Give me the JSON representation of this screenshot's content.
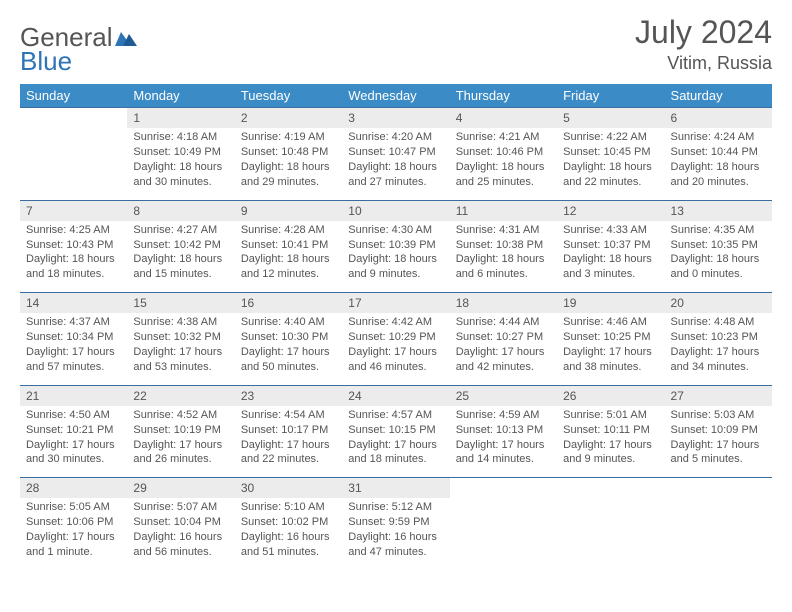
{
  "header": {
    "logo_text1": "General",
    "logo_text2": "Blue",
    "month": "July 2024",
    "location": "Vitim, Russia"
  },
  "colors": {
    "header_bg": "#3b8bc6",
    "header_text": "#ffffff",
    "rule": "#3b6ea0",
    "daynum_bg": "#ececec",
    "text": "#555555",
    "logo_blue": "#2f74b5"
  },
  "weekdays": [
    "Sunday",
    "Monday",
    "Tuesday",
    "Wednesday",
    "Thursday",
    "Friday",
    "Saturday"
  ],
  "weeks": [
    [
      null,
      {
        "n": "1",
        "sr": "Sunrise: 4:18 AM",
        "ss": "Sunset: 10:49 PM",
        "d1": "Daylight: 18 hours",
        "d2": "and 30 minutes."
      },
      {
        "n": "2",
        "sr": "Sunrise: 4:19 AM",
        "ss": "Sunset: 10:48 PM",
        "d1": "Daylight: 18 hours",
        "d2": "and 29 minutes."
      },
      {
        "n": "3",
        "sr": "Sunrise: 4:20 AM",
        "ss": "Sunset: 10:47 PM",
        "d1": "Daylight: 18 hours",
        "d2": "and 27 minutes."
      },
      {
        "n": "4",
        "sr": "Sunrise: 4:21 AM",
        "ss": "Sunset: 10:46 PM",
        "d1": "Daylight: 18 hours",
        "d2": "and 25 minutes."
      },
      {
        "n": "5",
        "sr": "Sunrise: 4:22 AM",
        "ss": "Sunset: 10:45 PM",
        "d1": "Daylight: 18 hours",
        "d2": "and 22 minutes."
      },
      {
        "n": "6",
        "sr": "Sunrise: 4:24 AM",
        "ss": "Sunset: 10:44 PM",
        "d1": "Daylight: 18 hours",
        "d2": "and 20 minutes."
      }
    ],
    [
      {
        "n": "7",
        "sr": "Sunrise: 4:25 AM",
        "ss": "Sunset: 10:43 PM",
        "d1": "Daylight: 18 hours",
        "d2": "and 18 minutes."
      },
      {
        "n": "8",
        "sr": "Sunrise: 4:27 AM",
        "ss": "Sunset: 10:42 PM",
        "d1": "Daylight: 18 hours",
        "d2": "and 15 minutes."
      },
      {
        "n": "9",
        "sr": "Sunrise: 4:28 AM",
        "ss": "Sunset: 10:41 PM",
        "d1": "Daylight: 18 hours",
        "d2": "and 12 minutes."
      },
      {
        "n": "10",
        "sr": "Sunrise: 4:30 AM",
        "ss": "Sunset: 10:39 PM",
        "d1": "Daylight: 18 hours",
        "d2": "and 9 minutes."
      },
      {
        "n": "11",
        "sr": "Sunrise: 4:31 AM",
        "ss": "Sunset: 10:38 PM",
        "d1": "Daylight: 18 hours",
        "d2": "and 6 minutes."
      },
      {
        "n": "12",
        "sr": "Sunrise: 4:33 AM",
        "ss": "Sunset: 10:37 PM",
        "d1": "Daylight: 18 hours",
        "d2": "and 3 minutes."
      },
      {
        "n": "13",
        "sr": "Sunrise: 4:35 AM",
        "ss": "Sunset: 10:35 PM",
        "d1": "Daylight: 18 hours",
        "d2": "and 0 minutes."
      }
    ],
    [
      {
        "n": "14",
        "sr": "Sunrise: 4:37 AM",
        "ss": "Sunset: 10:34 PM",
        "d1": "Daylight: 17 hours",
        "d2": "and 57 minutes."
      },
      {
        "n": "15",
        "sr": "Sunrise: 4:38 AM",
        "ss": "Sunset: 10:32 PM",
        "d1": "Daylight: 17 hours",
        "d2": "and 53 minutes."
      },
      {
        "n": "16",
        "sr": "Sunrise: 4:40 AM",
        "ss": "Sunset: 10:30 PM",
        "d1": "Daylight: 17 hours",
        "d2": "and 50 minutes."
      },
      {
        "n": "17",
        "sr": "Sunrise: 4:42 AM",
        "ss": "Sunset: 10:29 PM",
        "d1": "Daylight: 17 hours",
        "d2": "and 46 minutes."
      },
      {
        "n": "18",
        "sr": "Sunrise: 4:44 AM",
        "ss": "Sunset: 10:27 PM",
        "d1": "Daylight: 17 hours",
        "d2": "and 42 minutes."
      },
      {
        "n": "19",
        "sr": "Sunrise: 4:46 AM",
        "ss": "Sunset: 10:25 PM",
        "d1": "Daylight: 17 hours",
        "d2": "and 38 minutes."
      },
      {
        "n": "20",
        "sr": "Sunrise: 4:48 AM",
        "ss": "Sunset: 10:23 PM",
        "d1": "Daylight: 17 hours",
        "d2": "and 34 minutes."
      }
    ],
    [
      {
        "n": "21",
        "sr": "Sunrise: 4:50 AM",
        "ss": "Sunset: 10:21 PM",
        "d1": "Daylight: 17 hours",
        "d2": "and 30 minutes."
      },
      {
        "n": "22",
        "sr": "Sunrise: 4:52 AM",
        "ss": "Sunset: 10:19 PM",
        "d1": "Daylight: 17 hours",
        "d2": "and 26 minutes."
      },
      {
        "n": "23",
        "sr": "Sunrise: 4:54 AM",
        "ss": "Sunset: 10:17 PM",
        "d1": "Daylight: 17 hours",
        "d2": "and 22 minutes."
      },
      {
        "n": "24",
        "sr": "Sunrise: 4:57 AM",
        "ss": "Sunset: 10:15 PM",
        "d1": "Daylight: 17 hours",
        "d2": "and 18 minutes."
      },
      {
        "n": "25",
        "sr": "Sunrise: 4:59 AM",
        "ss": "Sunset: 10:13 PM",
        "d1": "Daylight: 17 hours",
        "d2": "and 14 minutes."
      },
      {
        "n": "26",
        "sr": "Sunrise: 5:01 AM",
        "ss": "Sunset: 10:11 PM",
        "d1": "Daylight: 17 hours",
        "d2": "and 9 minutes."
      },
      {
        "n": "27",
        "sr": "Sunrise: 5:03 AM",
        "ss": "Sunset: 10:09 PM",
        "d1": "Daylight: 17 hours",
        "d2": "and 5 minutes."
      }
    ],
    [
      {
        "n": "28",
        "sr": "Sunrise: 5:05 AM",
        "ss": "Sunset: 10:06 PM",
        "d1": "Daylight: 17 hours",
        "d2": "and 1 minute."
      },
      {
        "n": "29",
        "sr": "Sunrise: 5:07 AM",
        "ss": "Sunset: 10:04 PM",
        "d1": "Daylight: 16 hours",
        "d2": "and 56 minutes."
      },
      {
        "n": "30",
        "sr": "Sunrise: 5:10 AM",
        "ss": "Sunset: 10:02 PM",
        "d1": "Daylight: 16 hours",
        "d2": "and 51 minutes."
      },
      {
        "n": "31",
        "sr": "Sunrise: 5:12 AM",
        "ss": "Sunset: 9:59 PM",
        "d1": "Daylight: 16 hours",
        "d2": "and 47 minutes."
      },
      null,
      null,
      null
    ]
  ]
}
